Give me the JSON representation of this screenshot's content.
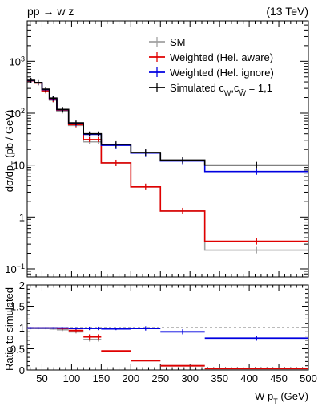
{
  "header": {
    "process_text": "pp → w z",
    "energy_text": "(13 TeV)"
  },
  "chart_data": [
    {
      "type": "line",
      "panel": "main",
      "xlabel": "",
      "ylabel": "dσ/dp_T (pb / GeV)",
      "ylabel_main": "dσ/dp",
      "ylabel_sub": "T",
      "ylabel_unit": " (pb / GeV)",
      "yscale": "log",
      "xlim": [
        25,
        500
      ],
      "ylim": [
        0.07,
        6000
      ],
      "x_ticks": [
        50,
        100,
        150,
        200,
        250,
        300,
        350,
        400,
        450,
        500
      ],
      "y_ticks": [
        {
          "value": 0.1,
          "mant": "10",
          "exp": "−1"
        },
        {
          "value": 1,
          "mant": "1",
          "exp": ""
        },
        {
          "value": 10,
          "mant": "10",
          "exp": ""
        },
        {
          "value": 100,
          "mant": "10",
          "exp": "2"
        },
        {
          "value": 1000,
          "mant": "10",
          "exp": "3"
        }
      ],
      "bin_edges": [
        25,
        37.5,
        50,
        62.5,
        75,
        95,
        120,
        140,
        150,
        200,
        250,
        325,
        500
      ],
      "legend_position": "top-right",
      "series": [
        {
          "name": "SM",
          "label": {
            "main": "SM",
            "mid": "",
            "sub1": "",
            "sep": "",
            "mid2": "",
            "sub2": "",
            "tail": ""
          },
          "color": "#a0a0a0",
          "values": [
            420,
            380,
            265,
            178,
            110,
            58,
            28,
            28,
            11,
            3.8,
            1.3,
            0.23
          ]
        },
        {
          "name": "Weighted (Hel. aware)",
          "label": {
            "main": "Weighted (Hel. aware)",
            "mid": "",
            "sub1": "",
            "sep": "",
            "mid2": "",
            "sub2": "",
            "tail": ""
          },
          "color": "#e00000",
          "values": [
            420,
            380,
            270,
            183,
            115,
            60,
            31,
            31,
            11,
            3.8,
            1.3,
            0.34
          ]
        },
        {
          "name": "Weighted (Hel. ignore)",
          "label": {
            "main": "Weighted (Hel. ignore)",
            "mid": "",
            "sub1": "",
            "sep": "",
            "mid2": "",
            "sub2": "",
            "tail": ""
          },
          "color": "#0000e0",
          "values": [
            425,
            385,
            285,
            192,
            117,
            63,
            39,
            39,
            24,
            17,
            12,
            7.5
          ]
        },
        {
          "name": "Simulated c_W,c_W̃ = 1,1",
          "label": {
            "main": "Simulated  c",
            "mid": "",
            "sub1": "W",
            "sep": ",c",
            "mid2": "",
            "sub2": "W̃",
            "tail": " = 1,1"
          },
          "color": "#000000",
          "values": [
            430,
            390,
            290,
            195,
            118,
            65,
            40,
            40,
            25,
            17.5,
            12.5,
            10
          ]
        }
      ]
    },
    {
      "type": "scatter",
      "panel": "ratio",
      "xlabel": "W p_T (GeV)",
      "xlabel_main": "W p",
      "xlabel_sub": "T",
      "xlabel_unit": " (GeV)",
      "ylabel": "Ratio to simulated",
      "xlim": [
        25,
        500
      ],
      "ylim": [
        0,
        2
      ],
      "x_ticks": [
        50,
        100,
        150,
        200,
        250,
        300,
        350,
        400,
        450,
        500
      ],
      "y_ticks": [
        0,
        0.5,
        1,
        1.5,
        2
      ],
      "reference_line": 1,
      "bin_edges": [
        25,
        37.5,
        50,
        62.5,
        75,
        95,
        120,
        140,
        150,
        200,
        250,
        325,
        500
      ],
      "series": [
        {
          "name": "SM",
          "color": "#a0a0a0",
          "values": [
            0.98,
            0.98,
            0.98,
            0.97,
            0.95,
            0.9,
            0.72,
            0.72,
            0.44,
            0.22,
            0.1,
            0.023
          ],
          "errors": [
            0.02,
            0.02,
            0.02,
            0.02,
            0.03,
            0.04,
            0.05,
            0.05,
            0.01,
            0.01,
            0.01,
            0.005
          ]
        },
        {
          "name": "Weighted (Hel. aware)",
          "color": "#e00000",
          "values": [
            0.99,
            0.99,
            0.99,
            0.99,
            0.98,
            0.93,
            0.78,
            0.78,
            0.45,
            0.22,
            0.1,
            0.034
          ],
          "errors": [
            0.02,
            0.02,
            0.02,
            0.02,
            0.03,
            0.05,
            0.06,
            0.06,
            0.01,
            0.01,
            0.01,
            0.005
          ]
        },
        {
          "name": "Weighted (Hel. ignore)",
          "color": "#0000e0",
          "values": [
            0.99,
            0.99,
            0.99,
            0.99,
            0.99,
            0.98,
            0.98,
            0.98,
            0.97,
            0.98,
            0.9,
            0.75
          ],
          "errors": [
            0.02,
            0.02,
            0.02,
            0.02,
            0.02,
            0.03,
            0.04,
            0.04,
            0.03,
            0.05,
            0.06,
            0.06
          ]
        }
      ]
    }
  ]
}
